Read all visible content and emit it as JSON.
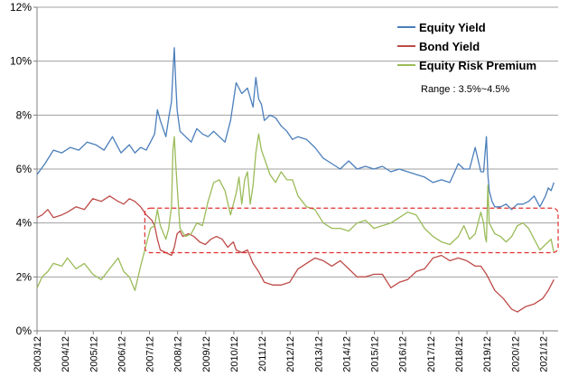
{
  "chart_data": {
    "type": "line",
    "title": "",
    "xlabel": "",
    "ylabel": "",
    "ylim": [
      0,
      12
    ],
    "y_ticks": [
      {
        "value": 0,
        "label": "0%"
      },
      {
        "value": 2,
        "label": "2%"
      },
      {
        "value": 4,
        "label": "4%"
      },
      {
        "value": 6,
        "label": "6%"
      },
      {
        "value": 8,
        "label": "8%"
      },
      {
        "value": 10,
        "label": "10%"
      },
      {
        "value": 12,
        "label": "12%"
      }
    ],
    "x_ticks": [
      {
        "value": 2003.917,
        "label": "2003/12"
      },
      {
        "value": 2004.917,
        "label": "2004/12"
      },
      {
        "value": 2005.917,
        "label": "2005/12"
      },
      {
        "value": 2006.917,
        "label": "2006/12"
      },
      {
        "value": 2007.917,
        "label": "2007/12"
      },
      {
        "value": 2008.917,
        "label": "2008/12"
      },
      {
        "value": 2009.917,
        "label": "2009/12"
      },
      {
        "value": 2010.917,
        "label": "2010/12"
      },
      {
        "value": 2011.917,
        "label": "2011/12"
      },
      {
        "value": 2012.917,
        "label": "2012/12"
      },
      {
        "value": 2013.917,
        "label": "2013/12"
      },
      {
        "value": 2014.917,
        "label": "2014/12"
      },
      {
        "value": 2015.917,
        "label": "2015/12"
      },
      {
        "value": 2016.917,
        "label": "2016/12"
      },
      {
        "value": 2017.917,
        "label": "2017/12"
      },
      {
        "value": 2018.917,
        "label": "2018/12"
      },
      {
        "value": 2019.917,
        "label": "2019/12"
      },
      {
        "value": 2020.917,
        "label": "2020/12"
      },
      {
        "value": 2021.917,
        "label": "2021/12"
      }
    ],
    "xlim": [
      2003.917,
      2022.45
    ],
    "gridlines": true,
    "legend_position": "top-right",
    "series": [
      {
        "name": "Equity Yield",
        "color": "#4a7ebb",
        "x": [
          2003.92,
          2004.2,
          2004.5,
          2004.8,
          2005.1,
          2005.4,
          2005.7,
          2006.0,
          2006.3,
          2006.6,
          2006.9,
          2007.2,
          2007.4,
          2007.6,
          2007.8,
          2007.95,
          2008.1,
          2008.2,
          2008.3,
          2008.4,
          2008.5,
          2008.6,
          2008.7,
          2008.75,
          2008.8,
          2008.85,
          2008.9,
          2009.0,
          2009.1,
          2009.2,
          2009.4,
          2009.6,
          2009.8,
          2010.0,
          2010.2,
          2010.4,
          2010.6,
          2010.8,
          2011.0,
          2011.2,
          2011.4,
          2011.6,
          2011.7,
          2011.8,
          2011.9,
          2012.0,
          2012.2,
          2012.4,
          2012.6,
          2012.8,
          2013.0,
          2013.2,
          2013.5,
          2013.8,
          2014.1,
          2014.4,
          2014.7,
          2015.0,
          2015.3,
          2015.6,
          2015.9,
          2016.2,
          2016.5,
          2016.8,
          2017.1,
          2017.4,
          2017.7,
          2018.0,
          2018.3,
          2018.6,
          2018.9,
          2019.1,
          2019.3,
          2019.5,
          2019.7,
          2019.8,
          2019.85,
          2019.9,
          2019.95,
          2020.0,
          2020.1,
          2020.2,
          2020.4,
          2020.6,
          2020.8,
          2021.0,
          2021.2,
          2021.4,
          2021.6,
          2021.8,
          2022.0,
          2022.1,
          2022.2,
          2022.3
        ],
        "values": [
          5.8,
          6.2,
          6.7,
          6.6,
          6.8,
          6.7,
          7.0,
          6.9,
          6.7,
          7.2,
          6.6,
          6.9,
          6.6,
          6.8,
          6.7,
          7.0,
          7.3,
          8.2,
          7.8,
          7.5,
          7.2,
          7.9,
          8.5,
          9.6,
          10.5,
          9.2,
          8.2,
          7.4,
          7.3,
          7.2,
          7.0,
          7.5,
          7.3,
          7.2,
          7.4,
          7.2,
          7.0,
          7.8,
          9.2,
          8.8,
          9.0,
          8.3,
          9.4,
          8.6,
          8.4,
          7.8,
          8.0,
          7.9,
          7.6,
          7.4,
          7.1,
          7.2,
          7.1,
          6.8,
          6.4,
          6.2,
          6.0,
          6.3,
          6.0,
          6.1,
          6.0,
          6.1,
          5.9,
          6.0,
          5.9,
          5.8,
          5.7,
          5.5,
          5.6,
          5.5,
          6.2,
          6.0,
          6.0,
          6.8,
          5.9,
          5.9,
          6.6,
          7.2,
          5.8,
          5.2,
          4.8,
          4.6,
          4.6,
          4.7,
          4.5,
          4.7,
          4.7,
          4.8,
          5.0,
          4.6,
          5.0,
          5.3,
          5.2,
          5.5
        ]
      },
      {
        "name": "Bond Yield",
        "color": "#be4b48",
        "x": [
          2003.92,
          2004.1,
          2004.3,
          2004.5,
          2004.8,
          2005.0,
          2005.3,
          2005.6,
          2005.9,
          2006.2,
          2006.5,
          2006.8,
          2007.0,
          2007.2,
          2007.4,
          2007.6,
          2007.8,
          2007.9,
          2008.0,
          2008.1,
          2008.2,
          2008.3,
          2008.5,
          2008.7,
          2008.8,
          2008.9,
          2009.0,
          2009.1,
          2009.3,
          2009.5,
          2009.7,
          2009.9,
          2010.1,
          2010.3,
          2010.5,
          2010.7,
          2010.9,
          2011.0,
          2011.2,
          2011.4,
          2011.6,
          2011.8,
          2012.0,
          2012.3,
          2012.6,
          2012.9,
          2013.2,
          2013.5,
          2013.8,
          2014.1,
          2014.4,
          2014.7,
          2015.0,
          2015.3,
          2015.6,
          2015.9,
          2016.2,
          2016.5,
          2016.8,
          2017.1,
          2017.4,
          2017.7,
          2018.0,
          2018.3,
          2018.6,
          2018.9,
          2019.2,
          2019.5,
          2019.7,
          2019.9,
          2020.0,
          2020.2,
          2020.5,
          2020.8,
          2021.0,
          2021.3,
          2021.6,
          2021.9,
          2022.1,
          2022.3
        ],
        "values": [
          4.2,
          4.3,
          4.5,
          4.2,
          4.3,
          4.4,
          4.6,
          4.5,
          4.9,
          4.8,
          5.0,
          4.8,
          4.7,
          4.9,
          4.8,
          4.6,
          4.3,
          4.2,
          4.1,
          3.9,
          3.4,
          3.0,
          2.9,
          2.8,
          3.1,
          3.6,
          3.7,
          3.5,
          3.6,
          3.5,
          3.3,
          3.2,
          3.4,
          3.5,
          3.4,
          3.1,
          3.3,
          3.0,
          2.9,
          3.0,
          2.5,
          2.2,
          1.8,
          1.7,
          1.7,
          1.8,
          2.3,
          2.5,
          2.7,
          2.6,
          2.4,
          2.6,
          2.3,
          2.0,
          2.0,
          2.1,
          2.1,
          1.6,
          1.8,
          1.9,
          2.2,
          2.3,
          2.7,
          2.8,
          2.6,
          2.7,
          2.6,
          2.4,
          2.4,
          2.1,
          1.9,
          1.5,
          1.2,
          0.8,
          0.7,
          0.9,
          1.0,
          1.2,
          1.5,
          1.9
        ]
      },
      {
        "name": "Equity Risk Premium",
        "color": "#9bbb59",
        "x": [
          2003.92,
          2004.1,
          2004.3,
          2004.5,
          2004.8,
          2005.0,
          2005.3,
          2005.6,
          2005.9,
          2006.2,
          2006.5,
          2006.8,
          2007.0,
          2007.2,
          2007.4,
          2007.6,
          2007.8,
          2007.95,
          2008.1,
          2008.2,
          2008.3,
          2008.5,
          2008.6,
          2008.7,
          2008.75,
          2008.8,
          2008.85,
          2008.9,
          2009.0,
          2009.2,
          2009.4,
          2009.6,
          2009.8,
          2010.0,
          2010.2,
          2010.4,
          2010.6,
          2010.8,
          2011.0,
          2011.1,
          2011.2,
          2011.3,
          2011.4,
          2011.5,
          2011.6,
          2011.7,
          2011.8,
          2011.9,
          2012.0,
          2012.2,
          2012.4,
          2012.6,
          2012.8,
          2013.0,
          2013.2,
          2013.5,
          2013.8,
          2014.1,
          2014.4,
          2014.7,
          2015.0,
          2015.3,
          2015.6,
          2015.9,
          2016.2,
          2016.5,
          2016.8,
          2017.1,
          2017.4,
          2017.7,
          2018.0,
          2018.3,
          2018.6,
          2018.9,
          2019.1,
          2019.3,
          2019.5,
          2019.7,
          2019.8,
          2019.85,
          2019.9,
          2019.95,
          2020.0,
          2020.2,
          2020.4,
          2020.6,
          2020.8,
          2021.0,
          2021.2,
          2021.4,
          2021.6,
          2021.8,
          2022.0,
          2022.2,
          2022.3
        ],
        "values": [
          1.6,
          2.0,
          2.2,
          2.5,
          2.4,
          2.7,
          2.3,
          2.5,
          2.1,
          1.9,
          2.3,
          2.7,
          2.2,
          2.0,
          1.5,
          2.4,
          3.2,
          3.8,
          3.9,
          4.5,
          3.9,
          3.4,
          3.8,
          4.6,
          6.7,
          7.2,
          6.2,
          5.4,
          3.8,
          3.5,
          3.6,
          4.0,
          3.9,
          4.8,
          5.5,
          5.6,
          5.2,
          4.3,
          5.1,
          5.7,
          4.7,
          5.6,
          5.9,
          4.7,
          5.4,
          6.6,
          7.3,
          6.7,
          6.4,
          5.8,
          5.5,
          5.9,
          5.6,
          5.6,
          5.0,
          4.6,
          4.5,
          4.0,
          3.8,
          3.8,
          3.7,
          4.0,
          4.1,
          3.8,
          3.9,
          4.0,
          4.2,
          4.4,
          4.3,
          3.8,
          3.5,
          3.3,
          3.2,
          3.5,
          3.9,
          3.4,
          3.6,
          4.4,
          4.0,
          3.5,
          3.3,
          5.4,
          4.0,
          3.6,
          3.5,
          3.3,
          3.5,
          3.9,
          4.0,
          3.8,
          3.4,
          3.0,
          3.2,
          3.4,
          2.9
        ]
      }
    ],
    "annotations": [
      {
        "type": "dashed-rectangle",
        "color": "#e03030",
        "x_range": [
          2007.75,
          2022.45
        ],
        "y_range": [
          2.9,
          4.55
        ],
        "text": "Range : 3.5%~4.5%"
      }
    ]
  }
}
